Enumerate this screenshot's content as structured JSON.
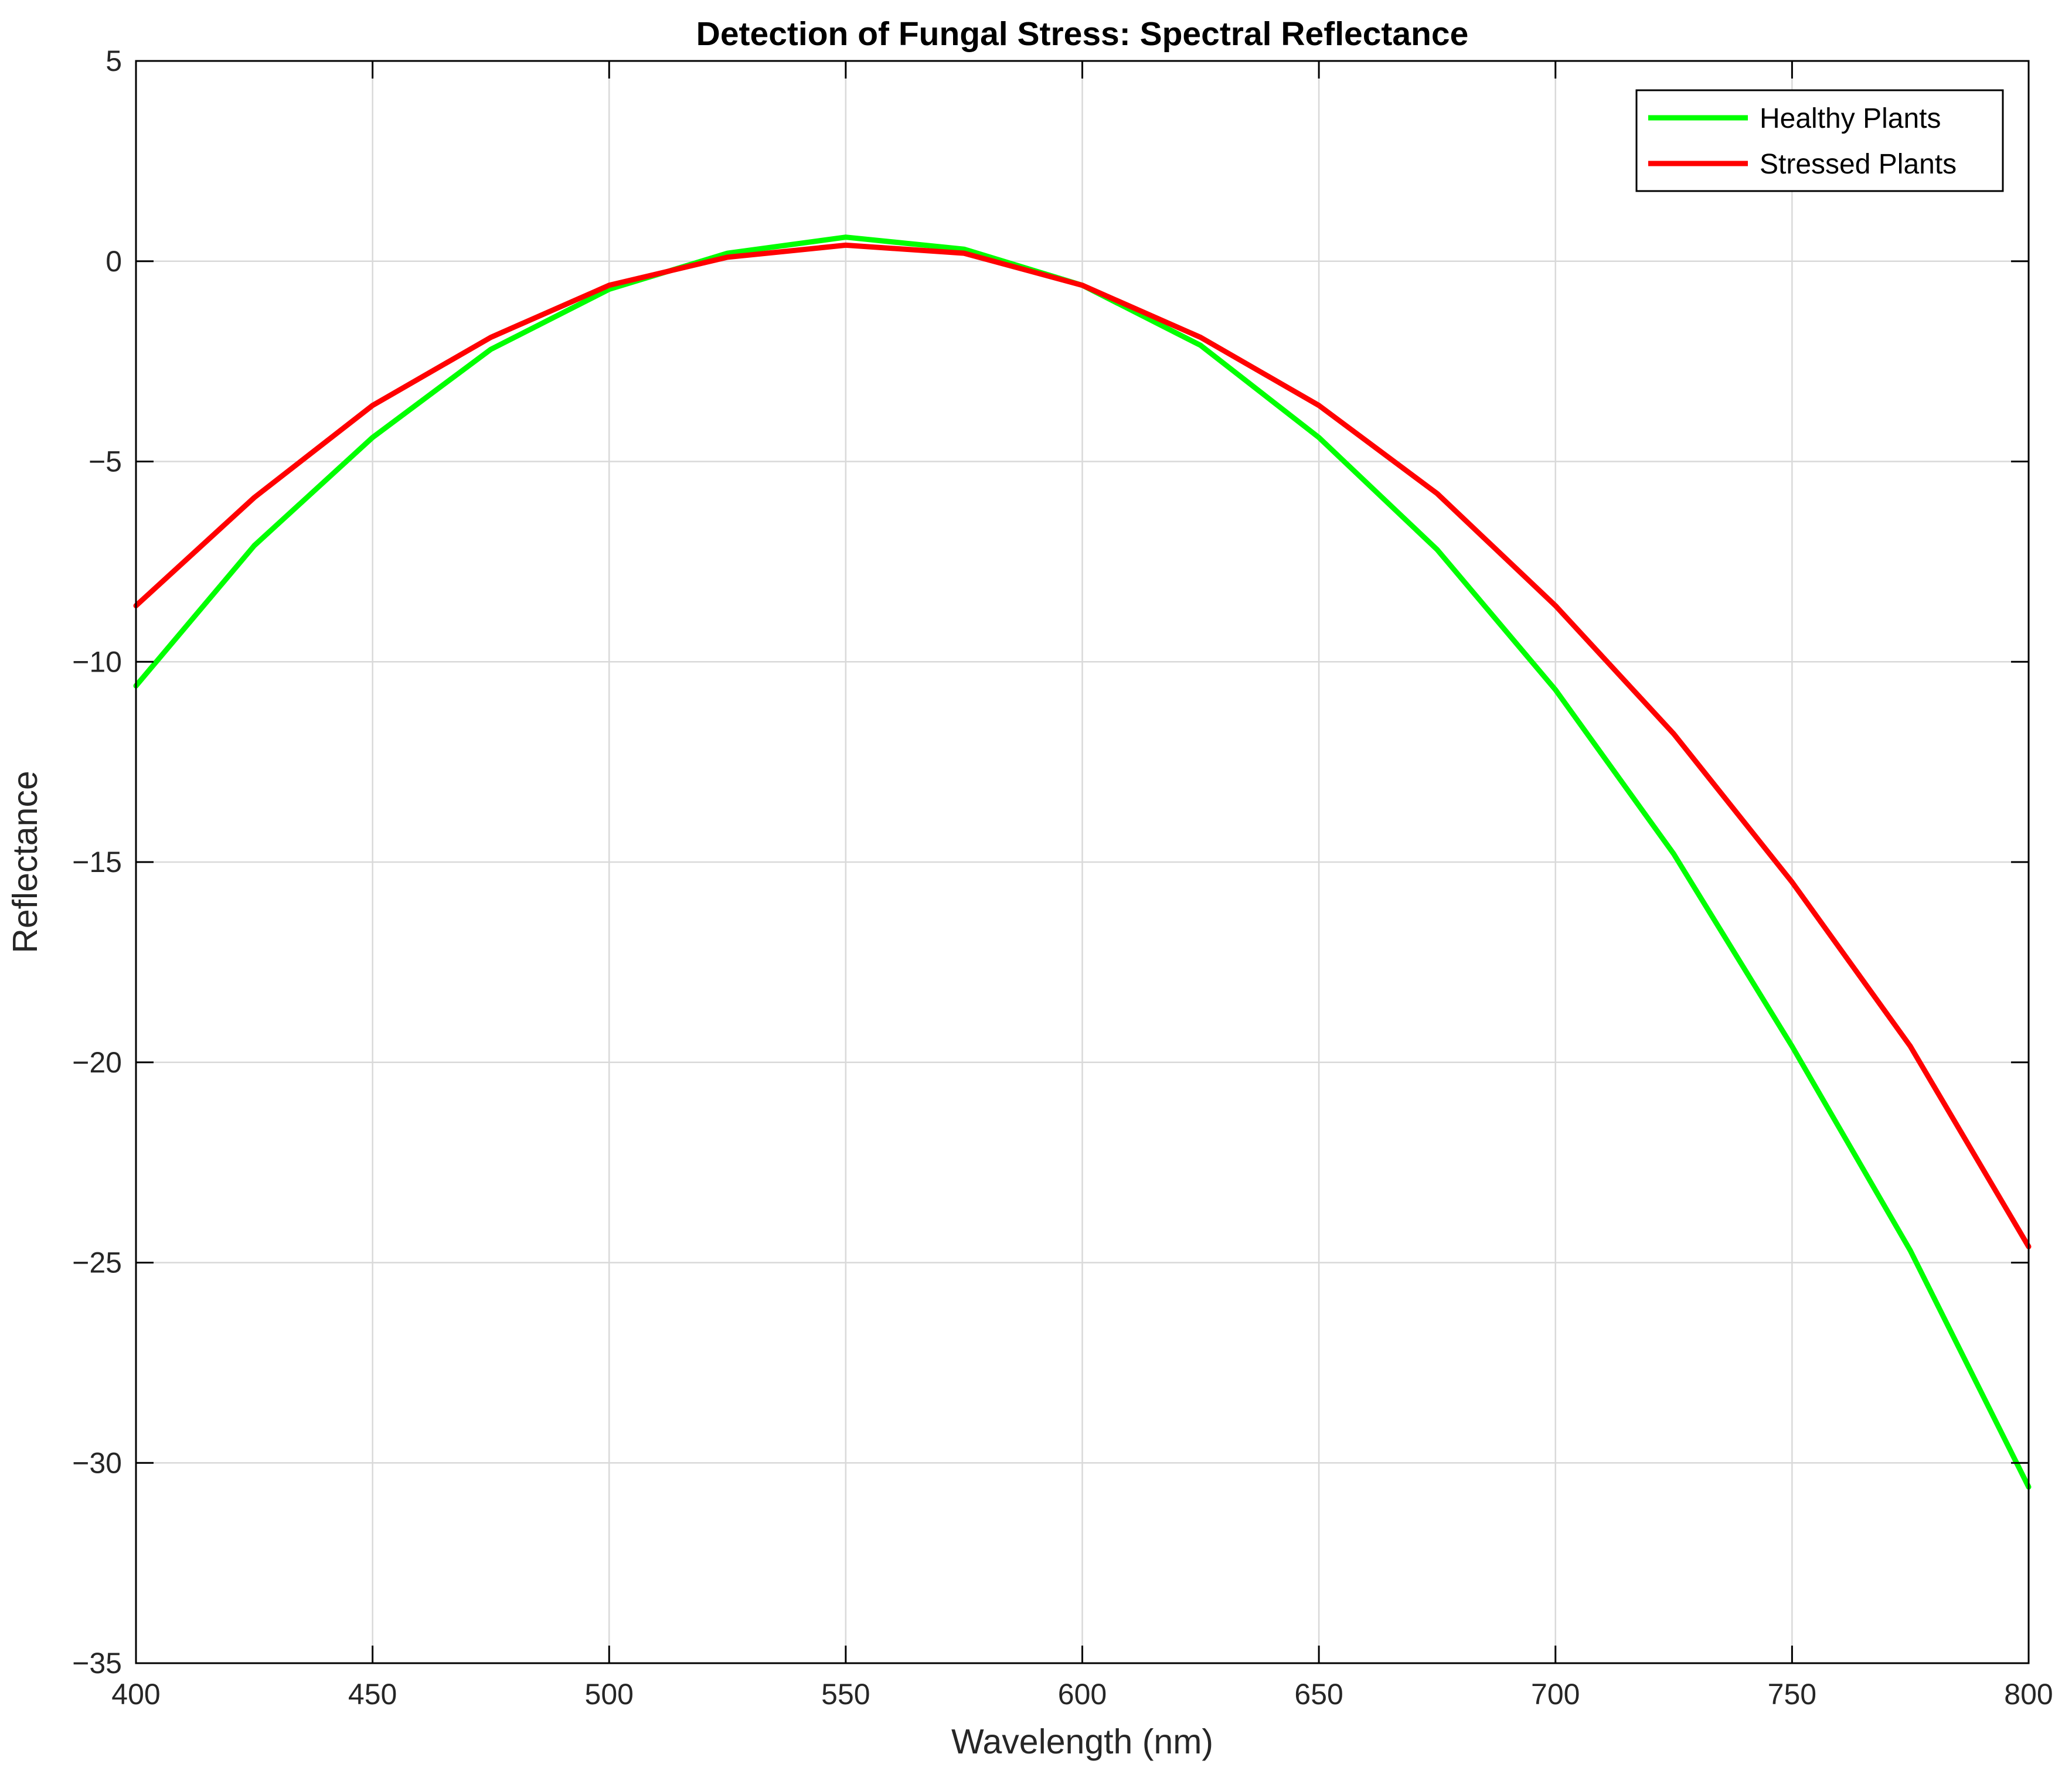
{
  "chart_data": {
    "type": "line",
    "title": "Detection of Fungal Stress: Spectral Reflectance",
    "xlabel": "Wavelength (nm)",
    "ylabel": "Reflectance",
    "xlim": [
      400,
      800
    ],
    "ylim": [
      -35,
      5
    ],
    "xticks": [
      400,
      450,
      500,
      550,
      600,
      650,
      700,
      750,
      800
    ],
    "yticks": [
      5,
      0,
      -5,
      -10,
      -15,
      -20,
      -25,
      -30,
      -35
    ],
    "xtick_labels": [
      "400",
      "450",
      "500",
      "550",
      "600",
      "650",
      "700",
      "750",
      "800"
    ],
    "ytick_labels": [
      "5",
      "0",
      "−5",
      "−10",
      "−15",
      "−20",
      "−25",
      "−30",
      "−35"
    ],
    "grid": true,
    "legend_position": "top-right",
    "x": [
      400,
      425,
      450,
      475,
      500,
      525,
      550,
      575,
      600,
      625,
      650,
      675,
      700,
      725,
      750,
      775,
      800
    ],
    "series": [
      {
        "name": "Healthy Plants",
        "color": "#00ff00",
        "values": [
          -10.6,
          -7.1,
          -4.4,
          -2.2,
          -0.7,
          0.2,
          0.6,
          0.3,
          -0.6,
          -2.1,
          -4.4,
          -7.2,
          -10.7,
          -14.8,
          -19.6,
          -24.7,
          -30.6
        ]
      },
      {
        "name": "Stressed Plants",
        "color": "#ff0000",
        "values": [
          -8.6,
          -5.9,
          -3.6,
          -1.9,
          -0.6,
          0.1,
          0.4,
          0.2,
          -0.6,
          -1.9,
          -3.6,
          -5.8,
          -8.6,
          -11.8,
          -15.5,
          -19.6,
          -24.6
        ]
      }
    ]
  }
}
